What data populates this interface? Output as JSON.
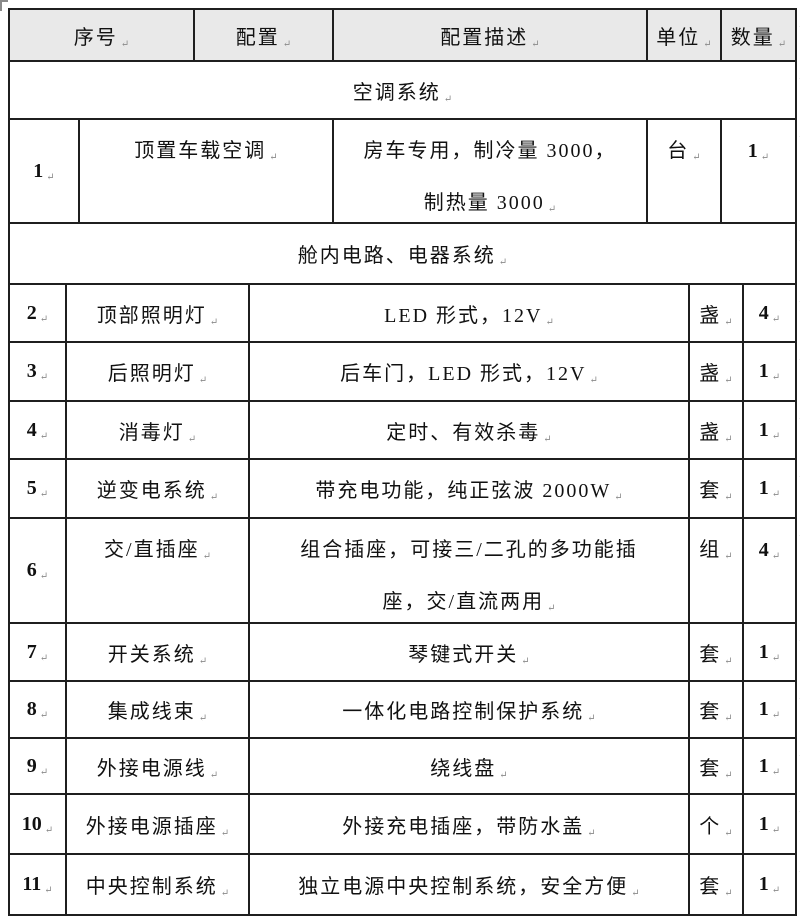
{
  "colors": {
    "header_bg": "#e9e9e9",
    "border": "#1f1f1f",
    "mark_gray": "#8a8a8a"
  },
  "icons": {
    "end_of_cell_mark": "↵",
    "row_end_mark": "↵"
  },
  "table": {
    "columns": [
      "序号",
      "配置",
      "配置描述",
      "单位",
      "数量"
    ],
    "sections": {
      "s1": "空调系统",
      "s2": "舱内电路、电器系统"
    },
    "items": [
      {
        "no": "1",
        "name": "顶置车载空调",
        "desc": "房车专用，制冷量 3000，\n制热量 3000",
        "unit": "台",
        "qty": "1"
      },
      {
        "no": "2",
        "name": "顶部照明灯",
        "desc": "LED 形式，12V",
        "unit": "盏",
        "qty": "4"
      },
      {
        "no": "3",
        "name": "后照明灯",
        "desc": "后车门，LED 形式，12V",
        "unit": "盏",
        "qty": "1"
      },
      {
        "no": "4",
        "name": "消毒灯",
        "desc": "定时、有效杀毒",
        "unit": "盏",
        "qty": "1"
      },
      {
        "no": "5",
        "name": "逆变电系统",
        "desc": "带充电功能，纯正弦波 2000W",
        "unit": "套",
        "qty": "1"
      },
      {
        "no": "6",
        "name": "交/直插座",
        "desc": "组合插座，可接三/二孔的多功能插\n座，交/直流两用",
        "unit": "组",
        "qty": "4"
      },
      {
        "no": "7",
        "name": "开关系统",
        "desc": "琴键式开关",
        "unit": "套",
        "qty": "1"
      },
      {
        "no": "8",
        "name": "集成线束",
        "desc": "一体化电路控制保护系统",
        "unit": "套",
        "qty": "1"
      },
      {
        "no": "9",
        "name": "外接电源线",
        "desc": "绕线盘",
        "unit": "套",
        "qty": "1"
      },
      {
        "no": "10",
        "name": "外接电源插座",
        "desc": "外接充电插座，带防水盖",
        "unit": "个",
        "qty": "1"
      },
      {
        "no": "11",
        "name": "中央控制系统",
        "desc": "独立电源中央控制系统，安全方便",
        "unit": "套",
        "qty": "1"
      }
    ]
  }
}
